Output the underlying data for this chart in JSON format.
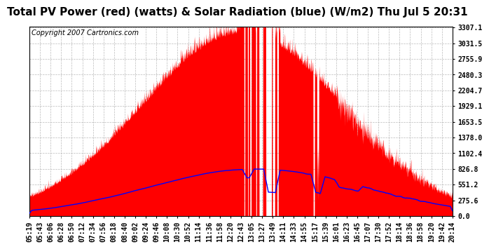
{
  "title": "Total PV Power (red) (watts) & Solar Radiation (blue) (W/m2) Thu Jul 5 20:31",
  "copyright_text": "Copyright 2007 Cartronics.com",
  "background_color": "#ffffff",
  "plot_bg_color": "#ffffff",
  "grid_color": "#aaaaaa",
  "red_fill_color": "#ff0000",
  "blue_line_color": "#0000ff",
  "ymin": 0.0,
  "ymax": 3307.1,
  "yticks": [
    0.0,
    275.6,
    551.2,
    826.8,
    1102.4,
    1378.0,
    1653.5,
    1929.1,
    2204.7,
    2480.3,
    2755.9,
    3031.5,
    3307.1
  ],
  "xtick_labels": [
    "05:19",
    "05:43",
    "06:06",
    "06:28",
    "06:50",
    "07:12",
    "07:34",
    "07:56",
    "08:18",
    "08:40",
    "09:02",
    "09:24",
    "09:46",
    "10:08",
    "10:30",
    "10:52",
    "11:14",
    "11:36",
    "11:58",
    "12:20",
    "12:43",
    "13:05",
    "13:27",
    "13:49",
    "14:11",
    "14:33",
    "14:55",
    "15:17",
    "15:39",
    "16:01",
    "16:23",
    "16:45",
    "17:07",
    "17:30",
    "17:52",
    "18:14",
    "18:36",
    "18:58",
    "19:20",
    "19:42",
    "20:14"
  ],
  "title_fontsize": 11,
  "tick_fontsize": 7,
  "copyright_fontsize": 7,
  "solar_rad_max": 826.8,
  "pv_max": 3307.1
}
